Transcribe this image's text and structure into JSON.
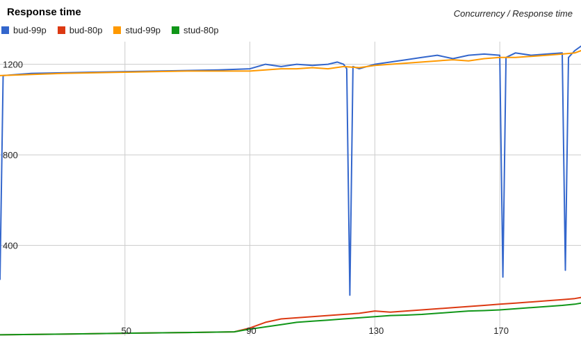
{
  "title": "Response time",
  "subtitle": "Concurrency / Response time",
  "colors": {
    "bud-99p": "#3366cc",
    "bud-80p": "#dc3912",
    "stud-99p": "#ff9900",
    "stud-80p": "#109618"
  },
  "legend": [
    {
      "name": "bud-99p",
      "color": "#3366cc"
    },
    {
      "name": "bud-80p",
      "color": "#dc3912"
    },
    {
      "name": "stud-99p",
      "color": "#ff9900"
    },
    {
      "name": "stud-80p",
      "color": "#109618"
    }
  ],
  "chart_data": {
    "type": "line",
    "title": "Response time",
    "subtitle": "Concurrency / Response time",
    "xlabel": "",
    "ylabel": "",
    "grid": true,
    "legend_position": "top-left",
    "xlim": [
      10,
      196
    ],
    "ylim": [
      0,
      1300
    ],
    "x_ticks": [
      50,
      90,
      130,
      170
    ],
    "y_ticks": [
      400,
      800,
      1200
    ],
    "series": [
      {
        "name": "bud-99p",
        "color": "#3366cc",
        "points": [
          [
            10,
            250
          ],
          [
            11,
            1150
          ],
          [
            20,
            1160
          ],
          [
            40,
            1165
          ],
          [
            60,
            1170
          ],
          [
            80,
            1175
          ],
          [
            90,
            1180
          ],
          [
            95,
            1200
          ],
          [
            100,
            1190
          ],
          [
            105,
            1200
          ],
          [
            110,
            1195
          ],
          [
            115,
            1200
          ],
          [
            118,
            1210
          ],
          [
            120,
            1200
          ],
          [
            121,
            1180
          ],
          [
            122,
            180
          ],
          [
            123,
            1190
          ],
          [
            125,
            1180
          ],
          [
            130,
            1200
          ],
          [
            135,
            1210
          ],
          [
            140,
            1220
          ],
          [
            145,
            1230
          ],
          [
            150,
            1240
          ],
          [
            155,
            1225
          ],
          [
            160,
            1240
          ],
          [
            165,
            1245
          ],
          [
            170,
            1240
          ],
          [
            171,
            260
          ],
          [
            172,
            1230
          ],
          [
            175,
            1250
          ],
          [
            180,
            1240
          ],
          [
            185,
            1245
          ],
          [
            190,
            1250
          ],
          [
            191,
            290
          ],
          [
            192,
            1230
          ],
          [
            194,
            1260
          ],
          [
            196,
            1280
          ]
        ]
      },
      {
        "name": "bud-80p",
        "color": "#dc3912",
        "points": [
          [
            10,
            5
          ],
          [
            30,
            8
          ],
          [
            50,
            12
          ],
          [
            70,
            15
          ],
          [
            85,
            18
          ],
          [
            90,
            35
          ],
          [
            95,
            60
          ],
          [
            100,
            75
          ],
          [
            105,
            80
          ],
          [
            110,
            85
          ],
          [
            115,
            90
          ],
          [
            120,
            95
          ],
          [
            125,
            100
          ],
          [
            130,
            110
          ],
          [
            135,
            105
          ],
          [
            140,
            110
          ],
          [
            145,
            115
          ],
          [
            150,
            120
          ],
          [
            155,
            125
          ],
          [
            160,
            130
          ],
          [
            165,
            135
          ],
          [
            170,
            140
          ],
          [
            175,
            145
          ],
          [
            180,
            150
          ],
          [
            185,
            155
          ],
          [
            190,
            160
          ],
          [
            194,
            165
          ],
          [
            196,
            170
          ]
        ]
      },
      {
        "name": "stud-99p",
        "color": "#ff9900",
        "points": [
          [
            10,
            1150
          ],
          [
            30,
            1160
          ],
          [
            50,
            1165
          ],
          [
            70,
            1170
          ],
          [
            90,
            1170
          ],
          [
            95,
            1175
          ],
          [
            100,
            1180
          ],
          [
            105,
            1180
          ],
          [
            110,
            1185
          ],
          [
            115,
            1180
          ],
          [
            120,
            1190
          ],
          [
            125,
            1185
          ],
          [
            130,
            1195
          ],
          [
            135,
            1200
          ],
          [
            140,
            1205
          ],
          [
            145,
            1210
          ],
          [
            150,
            1215
          ],
          [
            155,
            1220
          ],
          [
            160,
            1215
          ],
          [
            165,
            1225
          ],
          [
            170,
            1230
          ],
          [
            175,
            1230
          ],
          [
            180,
            1235
          ],
          [
            185,
            1240
          ],
          [
            190,
            1245
          ],
          [
            194,
            1250
          ],
          [
            196,
            1260
          ]
        ]
      },
      {
        "name": "stud-80p",
        "color": "#109618",
        "points": [
          [
            10,
            5
          ],
          [
            30,
            8
          ],
          [
            50,
            12
          ],
          [
            70,
            15
          ],
          [
            85,
            18
          ],
          [
            90,
            30
          ],
          [
            95,
            40
          ],
          [
            100,
            50
          ],
          [
            105,
            60
          ],
          [
            110,
            65
          ],
          [
            115,
            70
          ],
          [
            120,
            75
          ],
          [
            125,
            80
          ],
          [
            130,
            85
          ],
          [
            135,
            90
          ],
          [
            140,
            92
          ],
          [
            145,
            95
          ],
          [
            150,
            100
          ],
          [
            155,
            105
          ],
          [
            160,
            110
          ],
          [
            165,
            112
          ],
          [
            170,
            115
          ],
          [
            175,
            120
          ],
          [
            180,
            125
          ],
          [
            185,
            130
          ],
          [
            190,
            135
          ],
          [
            194,
            140
          ],
          [
            196,
            145
          ]
        ]
      }
    ]
  }
}
